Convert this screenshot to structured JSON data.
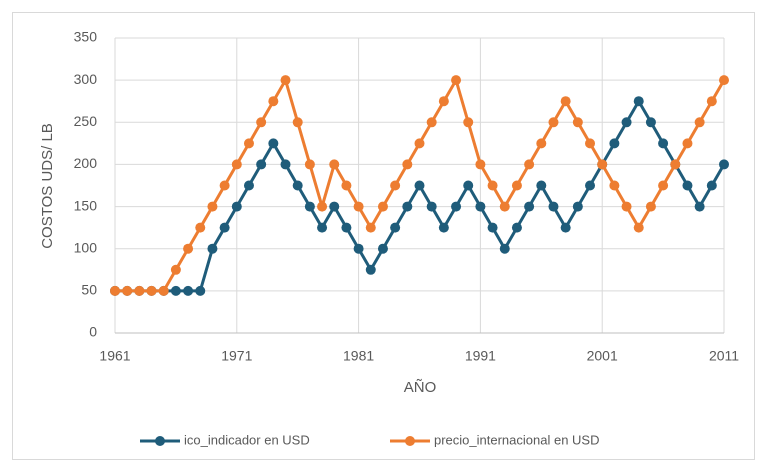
{
  "chart_data": {
    "type": "line",
    "xlabel": "AÑO",
    "ylabel": "COSTOS UDS/ LB",
    "x": [
      1961,
      1962,
      1963,
      1964,
      1965,
      1966,
      1967,
      1968,
      1969,
      1970,
      1971,
      1972,
      1973,
      1974,
      1975,
      1976,
      1977,
      1978,
      1979,
      1980,
      1981,
      1982,
      1983,
      1984,
      1985,
      1986,
      1987,
      1988,
      1989,
      1990,
      1991,
      1992,
      1993,
      1994,
      1995,
      1996,
      1997,
      1998,
      1999,
      2000,
      2001,
      2002,
      2003,
      2004,
      2005,
      2006,
      2007,
      2008,
      2009,
      2010,
      2011
    ],
    "series": [
      {
        "name": "ico_indicador en USD",
        "color": "#1f5c7a",
        "values": [
          50,
          50,
          50,
          50,
          50,
          50,
          50,
          50,
          100,
          125,
          150,
          175,
          200,
          225,
          200,
          175,
          150,
          125,
          150,
          125,
          100,
          75,
          100,
          125,
          150,
          175,
          150,
          125,
          150,
          175,
          150,
          125,
          100,
          125,
          150,
          175,
          150,
          125,
          150,
          175,
          200,
          225,
          250,
          275,
          250,
          225,
          200,
          175,
          150,
          175,
          200
        ]
      },
      {
        "name": "precio_internacional en USD",
        "color": "#ed7d31",
        "values": [
          50,
          50,
          50,
          50,
          50,
          75,
          100,
          125,
          150,
          175,
          200,
          225,
          250,
          275,
          300,
          250,
          200,
          150,
          200,
          175,
          150,
          125,
          150,
          175,
          200,
          225,
          250,
          275,
          300,
          250,
          200,
          175,
          150,
          175,
          200,
          225,
          250,
          275,
          250,
          225,
          200,
          175,
          150,
          125,
          150,
          175,
          200,
          225,
          250,
          275,
          300
        ]
      }
    ],
    "xlim": [
      1961,
      2011
    ],
    "xticks": [
      1961,
      1971,
      1981,
      1991,
      2001,
      2011
    ],
    "ylim": [
      0,
      350
    ],
    "yticks": [
      0,
      50,
      100,
      150,
      200,
      250,
      300,
      350
    ],
    "grid": true,
    "legend": "bottom"
  }
}
